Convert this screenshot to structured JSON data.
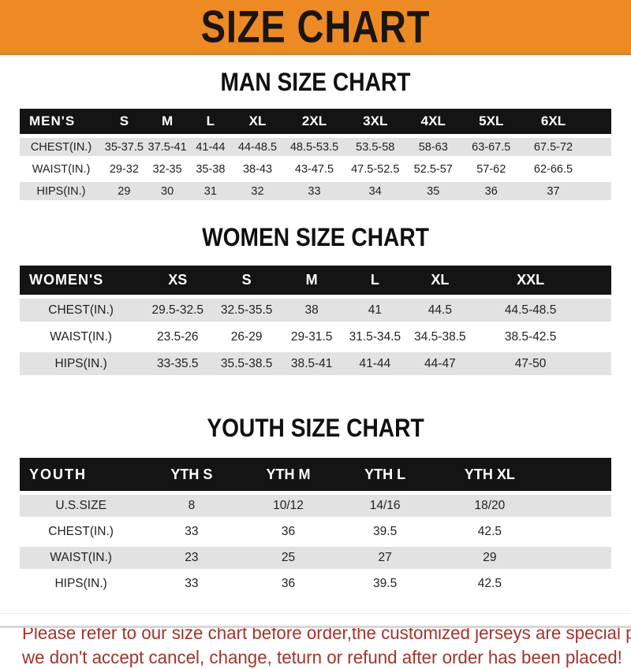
{
  "banner": {
    "title": "SIZE CHART"
  },
  "sections": {
    "men": {
      "title": "MAN SIZE CHART",
      "table": {
        "header": [
          "MEN'S",
          "S",
          "M",
          "L",
          "XL",
          "2XL",
          "3XL",
          "4XL",
          "5XL",
          "6XL"
        ],
        "rows": [
          [
            "CHEST(IN.)",
            "35-37.5",
            "37.5-41",
            "41-44",
            "44-48.5",
            "48.5-53.5",
            "53.5-58",
            "58-63",
            "63-67.5",
            "67.5-72"
          ],
          [
            "WAIST(IN.)",
            "29-32",
            "32-35",
            "35-38",
            "38-43",
            "43-47.5",
            "47.5-52.5",
            "52.5-57",
            "57-62",
            "62-66.5"
          ],
          [
            "HIPS(IN.)",
            "29",
            "30",
            "31",
            "32",
            "33",
            "34",
            "35",
            "36",
            "37"
          ]
        ]
      }
    },
    "women": {
      "title": "WOMEN SIZE CHART",
      "table": {
        "header": [
          "WOMEN'S",
          "XS",
          "S",
          "M",
          "L",
          "XL",
          "XXL"
        ],
        "rows": [
          [
            "CHEST(IN.)",
            "29.5-32.5",
            "32.5-35.5",
            "38",
            "41",
            "44.5",
            "44.5-48.5"
          ],
          [
            "WAIST(IN.)",
            "23.5-26",
            "26-29",
            "29-31.5",
            "31.5-34.5",
            "34.5-38.5",
            "38.5-42.5"
          ],
          [
            "HIPS(IN.)",
            "33-35.5",
            "35.5-38.5",
            "38.5-41",
            "41-44",
            "44-47",
            "47-50"
          ]
        ]
      }
    },
    "youth": {
      "title": "YOUTH SIZE CHART",
      "table": {
        "header": [
          "YOUTH",
          "YTH S",
          "YTH M",
          "YTH L",
          "YTH XL"
        ],
        "rows": [
          [
            "U.S.SIZE",
            "8",
            "10/12",
            "14/16",
            "18/20"
          ],
          [
            "CHEST(IN.)",
            "33",
            "36",
            "39.5",
            "42.5"
          ],
          [
            "WAIST(IN.)",
            "23",
            "25",
            "27",
            "29"
          ],
          [
            "HIPS(IN.)",
            "33",
            "36",
            "39.5",
            "42.5"
          ]
        ]
      }
    }
  },
  "footer": {
    "line1": "Please refer to our size chart before order,the customized jerseys are special products,",
    "line2": "we don't accept cancel, change, teturn or refund after order has been placed!"
  },
  "colors": {
    "banner_orange": "#ee8a23",
    "header_bar_black": "#141414",
    "row_gray": "#e2e2e2",
    "note_red": "#a5322c"
  }
}
